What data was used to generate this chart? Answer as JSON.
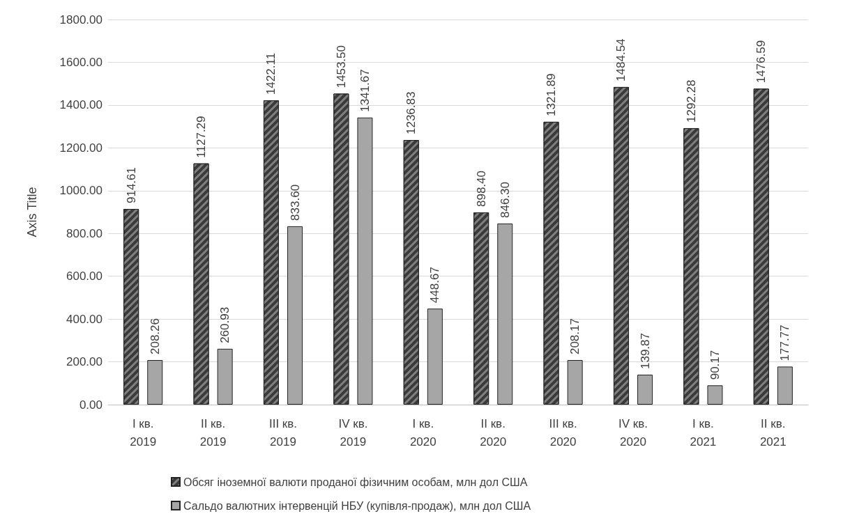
{
  "chart_data": {
    "type": "bar",
    "ylabel": "Axis Title",
    "categories": [
      "I кв.\n2019",
      "II кв.\n2019",
      "III кв.\n2019",
      "IV кв.\n2019",
      "I кв.\n2020",
      "II кв.\n2020",
      "III кв.\n2020",
      "IV кв.\n2020",
      "I кв.\n2021",
      "II кв.\n2021"
    ],
    "series": [
      {
        "name": "Обсяг іноземної валюти проданої фізичним особам, млн дол США",
        "color": "#3a3a3a",
        "values": [
          914.61,
          1127.29,
          1422.11,
          1453.5,
          1236.83,
          898.4,
          1321.89,
          1484.54,
          1292.28,
          1476.59
        ],
        "value_labels": [
          "914.61",
          "1127.29",
          "1422.11",
          "1453.50",
          "1236.83",
          "898.40",
          "1321.89",
          "1484.54",
          "1292.28",
          "1476.59"
        ]
      },
      {
        "name": "Сальдо валютних інтервенцій НБУ (купівля-продаж), млн дол США",
        "color": "#a6a6a6",
        "values": [
          208.26,
          260.93,
          833.6,
          1341.67,
          448.67,
          846.3,
          208.17,
          139.87,
          90.17,
          177.77
        ],
        "value_labels": [
          "208.26",
          "260.93",
          "833.60",
          "1341.67",
          "448.67",
          "846.30",
          "208.17",
          "139.87",
          "90.17",
          "177.77"
        ]
      }
    ],
    "ylim": [
      0,
      1800
    ],
    "yticks": [
      {
        "value": 0,
        "label": "0.00"
      },
      {
        "value": 200,
        "label": "200.00"
      },
      {
        "value": 400,
        "label": "400.00"
      },
      {
        "value": 600,
        "label": "600.00"
      },
      {
        "value": 800,
        "label": "800.00"
      },
      {
        "value": 1000,
        "label": "1000.00"
      },
      {
        "value": 1200,
        "label": "1200.00"
      },
      {
        "value": 1400,
        "label": "1400.00"
      },
      {
        "value": 1600,
        "label": "1600.00"
      },
      {
        "value": 1800,
        "label": "1800.00"
      }
    ],
    "grid": "y",
    "legend": "bottom"
  }
}
